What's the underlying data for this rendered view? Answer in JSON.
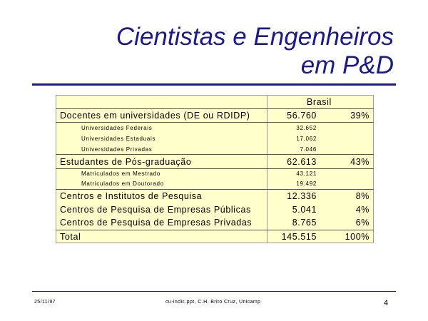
{
  "slide": {
    "title_line1": "Cientistas e Engenheiros",
    "title_line2": "em P&D",
    "colors": {
      "title": "#1a1a8c",
      "rule": "#1a1a8c",
      "table_bg": "#ffffcc"
    }
  },
  "table": {
    "column_header": "Brasil",
    "rows": [
      {
        "label": "Docentes em universidades (DE ou RDIDP)",
        "value": "56.760",
        "pct": "39%"
      },
      {
        "label": "Universidades Federais",
        "value": "32.652",
        "pct": ""
      },
      {
        "label": "Universidades Estaduais",
        "value": "17.062",
        "pct": ""
      },
      {
        "label": "Universidades Privadas",
        "value": "7.046",
        "pct": ""
      },
      {
        "label": "Estudantes de Pós-graduação",
        "value": "62.613",
        "pct": "43%"
      },
      {
        "label": "Matriculados em Mestrado",
        "value": "43.121",
        "pct": ""
      },
      {
        "label": "Matriculados em Doutorado",
        "value": "19.492",
        "pct": ""
      },
      {
        "label": "Centros e Institutos de Pesquisa",
        "value": "12.336",
        "pct": "8%"
      },
      {
        "label": "Centros de Pesquisa de Empresas Públicas",
        "value": "5.041",
        "pct": "4%"
      },
      {
        "label": "Centros de Pesquisa de Empresas Privadas",
        "value": "8.765",
        "pct": "6%"
      },
      {
        "label": "Total",
        "value": "145.515",
        "pct": "100%"
      }
    ]
  },
  "footer": {
    "date": "25/11/97",
    "source": "cu-indic.ppt, C.H. Brito Cruz, Unicamp",
    "page_number": "4"
  }
}
